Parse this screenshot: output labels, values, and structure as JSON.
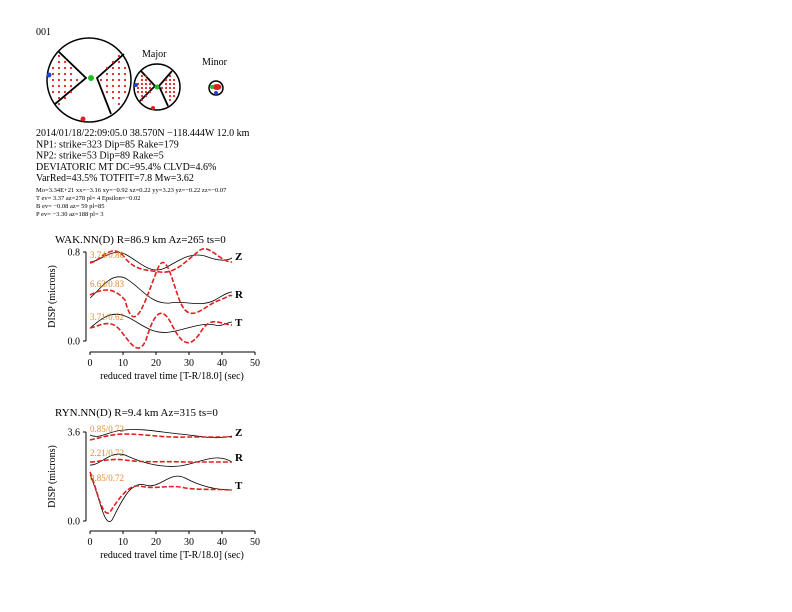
{
  "header": {
    "id": "001",
    "major": "Major",
    "minor": "Minor"
  },
  "solution": {
    "lines": [
      "2014/01/18/22:09:05.0 38.570N −118.444W 12.0 km",
      "NP1: strike=323 Dip=85 Rake=179",
      "NP2: strike=53 Dip=89 Rake=5",
      "DEVIATORIC MT DC=95.4% CLVD=4.6%",
      "VarRed=43.5% TOTFIT=7.8 Mw=3.62"
    ],
    "details": [
      "Mo=3.34E+21 xx=−3.16 xy=−0.92 xz=0.22 yy=3.23 yz=−0.22 zz=−0.07",
      "T ev= 3.37 az=278 pl= 4 Epsilon=−0.02",
      "B ev= −0.08 az= 59 pl=85",
      "P ev= −3.30 az=188 pl= 3"
    ]
  },
  "panels": [
    {
      "title": "WAK.NN(D) R=86.9 km Az=265 ts=0",
      "ylabel": "DISP (microns)",
      "xlabel": "reduced travel time [T-R/18.0] (sec)",
      "xlim": [
        0,
        50
      ],
      "xticks": [
        0,
        10,
        20,
        30,
        40,
        50
      ],
      "ylim": [
        0,
        0.8
      ],
      "yticks": [
        {
          "value": 0,
          "label": "0.0"
        },
        0.8
      ],
      "components": [
        {
          "name": "Z",
          "label": "3.74/0.80"
        },
        {
          "name": "R",
          "label": "6.63/0.83"
        },
        {
          "name": "T",
          "label": "3.71/0.62"
        }
      ]
    },
    {
      "title": "RYN.NN(D) R=9.4 km Az=315 ts=0",
      "ylabel": "DISP (microns)",
      "xlabel": "reduced travel time [T-R/18.0] (sec)",
      "xlim": [
        0,
        50
      ],
      "xticks": [
        0,
        10,
        20,
        30,
        40,
        50
      ],
      "ylim": [
        0,
        3.6
      ],
      "yticks": [
        {
          "value": 0,
          "label": "0.0"
        },
        3.6
      ],
      "components": [
        {
          "name": "Z",
          "label": "0.85/0.72"
        },
        {
          "name": "R",
          "label": "2.21/0.72"
        },
        {
          "name": "T",
          "label": "0.85/0.72"
        }
      ]
    }
  ]
}
